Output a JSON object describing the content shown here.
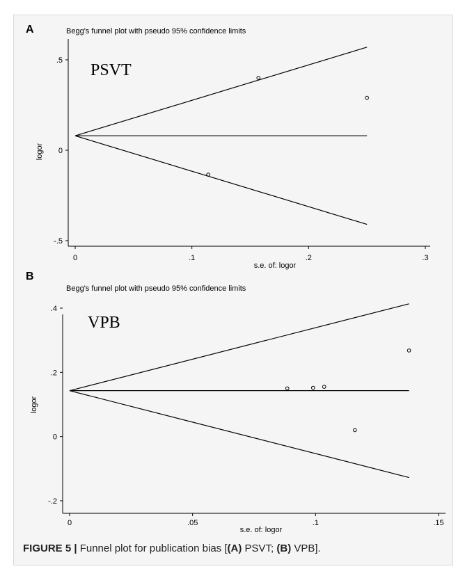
{
  "caption": {
    "prefix": "FIGURE 5 |",
    "text_1": " Funnel plot for publication bias [",
    "a_tag": "(A)",
    "text_2": " PSVT; ",
    "b_tag": "(B)",
    "text_3": " VPB]."
  },
  "colors": {
    "ink": "#000000",
    "panel_bg": "#f5f5f5",
    "border": "#d9d9d9"
  },
  "chart_data": [
    {
      "type": "scatter",
      "panel_letter": "A",
      "title": "Begg's funnel plot with pseudo 95% confidence limits",
      "inset_label": "PSVT",
      "xlabel": "s.e. of: logor",
      "ylabel": "logor",
      "xlim": [
        0,
        0.3
      ],
      "ylim": [
        -0.5,
        0.5
      ],
      "xticks": [
        0,
        0.1,
        0.2,
        0.3
      ],
      "xtick_labels": [
        "0",
        ".1",
        ".2",
        ".3"
      ],
      "yticks": [
        0.5,
        0,
        -0.5
      ],
      "ytick_labels": [
        ".5",
        "0",
        "-.5"
      ],
      "pooled": 0.08,
      "funnel_max_se": 0.25,
      "points": [
        {
          "x": 0.114,
          "y": -0.135
        },
        {
          "x": 0.157,
          "y": 0.4
        },
        {
          "x": 0.25,
          "y": 0.29
        }
      ],
      "grid": false
    },
    {
      "type": "scatter",
      "panel_letter": "B",
      "title": "Begg's funnel plot with pseudo 95% confidence limits",
      "inset_label": "VPB",
      "xlabel": "s.e. of: logor",
      "ylabel": "logor",
      "xlim": [
        0,
        0.15
      ],
      "ylim": [
        -0.2,
        0.4
      ],
      "xticks": [
        0,
        0.05,
        0.1,
        0.15
      ],
      "xtick_labels": [
        "0",
        ".05",
        ".1",
        ".15"
      ],
      "yticks": [
        0.4,
        0.2,
        0,
        -0.2
      ],
      "ytick_labels": [
        ".4",
        ".2",
        "0",
        "-.2"
      ],
      "pooled": 0.143,
      "funnel_max_se": 0.138,
      "points": [
        {
          "x": 0.0885,
          "y": 0.15
        },
        {
          "x": 0.099,
          "y": 0.152
        },
        {
          "x": 0.1035,
          "y": 0.155
        },
        {
          "x": 0.116,
          "y": 0.02
        },
        {
          "x": 0.138,
          "y": 0.268
        }
      ],
      "grid": false
    }
  ]
}
